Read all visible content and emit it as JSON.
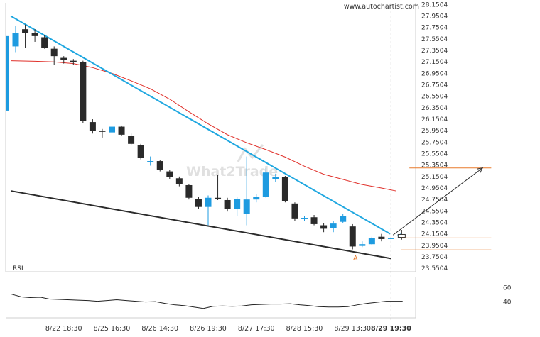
{
  "watermark": "www.autochartist.com",
  "logo_text": "What2Trade",
  "pattern_point_label": "A",
  "colors": {
    "bull": "#1e9be0",
    "bear": "#2a2a2a",
    "ma": "#e0302a",
    "trendline_upper": "#1fa7e0",
    "trendline_lower": "#2b2b2b",
    "target_levels": "#e87a2c",
    "forecast_arrow": "#2b2b2b",
    "rsi_line": "#222222"
  },
  "chart_data": [
    {
      "type": "candlestick",
      "title": "",
      "y_axis_position": "right",
      "y_ticks": [
        "28.1504",
        "27.9504",
        "27.7504",
        "27.5504",
        "27.3504",
        "27.1504",
        "26.9504",
        "26.7504",
        "26.5504",
        "26.3504",
        "26.1504",
        "25.9504",
        "25.7504",
        "25.5504",
        "25.3504",
        "25.1504",
        "24.9504",
        "24.7504",
        "24.5504",
        "24.3504",
        "24.1504",
        "23.9504",
        "23.7504",
        "23.5504"
      ],
      "ylim": [
        23.49,
        28.18
      ],
      "x_tick_labels": [
        {
          "label": "8/22 18:30",
          "index": 5.0
        },
        {
          "label": "8/25 16:30",
          "index": 10.0
        },
        {
          "label": "8/26 14:30",
          "index": 15.0
        },
        {
          "label": "8/26 19:30",
          "index": 20.0
        },
        {
          "label": "8/27 17:30",
          "index": 25.0
        },
        {
          "label": "8/28 15:30",
          "index": 30.0
        },
        {
          "label": "8/29 13:30",
          "index": 35.0
        },
        {
          "label": "8/29 19:30",
          "index": 39.0
        }
      ],
      "current_time_index": 39,
      "candles": [
        {
          "o": 27.42,
          "h": 27.78,
          "l": 27.32,
          "c": 27.65
        },
        {
          "o": 27.72,
          "h": 27.8,
          "l": 27.4,
          "c": 27.66
        },
        {
          "o": 27.66,
          "h": 27.72,
          "l": 27.5,
          "c": 27.6
        },
        {
          "o": 27.58,
          "h": 27.62,
          "l": 27.38,
          "c": 27.4
        },
        {
          "o": 27.38,
          "h": 27.42,
          "l": 27.1,
          "c": 27.25
        },
        {
          "o": 27.22,
          "h": 27.25,
          "l": 27.12,
          "c": 27.18
        },
        {
          "o": 27.17,
          "h": 27.2,
          "l": 27.1,
          "c": 27.16
        },
        {
          "o": 27.15,
          "h": 27.17,
          "l": 26.08,
          "c": 26.12
        },
        {
          "o": 26.1,
          "h": 26.15,
          "l": 25.9,
          "c": 25.95
        },
        {
          "o": 25.95,
          "h": 25.98,
          "l": 25.83,
          "c": 25.93
        },
        {
          "o": 25.92,
          "h": 26.08,
          "l": 25.9,
          "c": 26.02
        },
        {
          "o": 26.02,
          "h": 26.04,
          "l": 25.86,
          "c": 25.88
        },
        {
          "o": 25.86,
          "h": 25.9,
          "l": 25.7,
          "c": 25.72
        },
        {
          "o": 25.7,
          "h": 25.72,
          "l": 25.45,
          "c": 25.48
        },
        {
          "o": 25.42,
          "h": 25.5,
          "l": 25.34,
          "c": 25.42
        },
        {
          "o": 25.42,
          "h": 25.44,
          "l": 25.24,
          "c": 25.26
        },
        {
          "o": 25.24,
          "h": 25.26,
          "l": 25.1,
          "c": 25.14
        },
        {
          "o": 25.12,
          "h": 25.15,
          "l": 24.98,
          "c": 25.02
        },
        {
          "o": 25.0,
          "h": 25.02,
          "l": 24.75,
          "c": 24.78
        },
        {
          "o": 24.76,
          "h": 24.8,
          "l": 24.58,
          "c": 24.62
        },
        {
          "o": 24.62,
          "h": 24.82,
          "l": 24.3,
          "c": 24.78
        },
        {
          "o": 24.78,
          "h": 25.18,
          "l": 24.74,
          "c": 24.76
        },
        {
          "o": 24.74,
          "h": 24.78,
          "l": 24.54,
          "c": 24.58
        },
        {
          "o": 24.58,
          "h": 24.8,
          "l": 24.46,
          "c": 24.76
        },
        {
          "o": 24.5,
          "h": 25.5,
          "l": 24.3,
          "c": 24.75
        },
        {
          "o": 24.75,
          "h": 24.85,
          "l": 24.7,
          "c": 24.8
        },
        {
          "o": 24.8,
          "h": 25.3,
          "l": 24.78,
          "c": 25.22
        },
        {
          "o": 25.1,
          "h": 25.2,
          "l": 25.05,
          "c": 25.14
        },
        {
          "o": 25.14,
          "h": 25.16,
          "l": 24.7,
          "c": 24.72
        },
        {
          "o": 24.68,
          "h": 24.7,
          "l": 24.38,
          "c": 24.42
        },
        {
          "o": 24.42,
          "h": 24.46,
          "l": 24.38,
          "c": 24.43
        },
        {
          "o": 24.44,
          "h": 24.48,
          "l": 24.3,
          "c": 24.32
        },
        {
          "o": 24.3,
          "h": 24.34,
          "l": 24.18,
          "c": 24.24
        },
        {
          "o": 24.25,
          "h": 24.38,
          "l": 24.18,
          "c": 24.33
        },
        {
          "o": 24.36,
          "h": 24.5,
          "l": 24.34,
          "c": 24.46
        },
        {
          "o": 24.28,
          "h": 24.32,
          "l": 23.88,
          "c": 23.93
        },
        {
          "o": 23.94,
          "h": 24.02,
          "l": 23.92,
          "c": 23.97
        },
        {
          "o": 23.97,
          "h": 24.1,
          "l": 23.95,
          "c": 24.08
        },
        {
          "o": 24.1,
          "h": 24.15,
          "l": 24.02,
          "c": 24.06
        },
        {
          "o": 24.06,
          "h": 24.1,
          "l": 24.04,
          "c": 24.08
        },
        {
          "o": 24.12,
          "h": 24.16,
          "l": 24.1,
          "c": 24.14
        }
      ],
      "forecast_candle": {
        "index": 40.1,
        "o": 24.09,
        "h": 24.22,
        "l": 24.05,
        "c": 24.14
      },
      "moving_average": [
        {
          "i": -0.5,
          "v": 27.17
        },
        {
          "i": 2,
          "v": 27.16
        },
        {
          "i": 4,
          "v": 27.15
        },
        {
          "i": 6,
          "v": 27.12
        },
        {
          "i": 8,
          "v": 27.05
        },
        {
          "i": 10,
          "v": 26.95
        },
        {
          "i": 12,
          "v": 26.82
        },
        {
          "i": 14,
          "v": 26.68
        },
        {
          "i": 16,
          "v": 26.5
        },
        {
          "i": 18,
          "v": 26.28
        },
        {
          "i": 20,
          "v": 26.07
        },
        {
          "i": 22,
          "v": 25.88
        },
        {
          "i": 24,
          "v": 25.74
        },
        {
          "i": 26,
          "v": 25.62
        },
        {
          "i": 28,
          "v": 25.49
        },
        {
          "i": 30,
          "v": 25.33
        },
        {
          "i": 32,
          "v": 25.19
        },
        {
          "i": 34,
          "v": 25.1
        },
        {
          "i": 36,
          "v": 25.01
        },
        {
          "i": 38,
          "v": 24.95
        },
        {
          "i": 39.5,
          "v": 24.9
        }
      ],
      "trendline_upper": [
        {
          "i": -0.5,
          "v": 27.95
        },
        {
          "i": 38.9,
          "v": 24.15
        }
      ],
      "trendline_lower": [
        {
          "i": -0.5,
          "v": 24.9
        },
        {
          "i": 39.0,
          "v": 23.72
        }
      ],
      "target_level_upper": {
        "v": 25.3,
        "i_start": 40.9,
        "i_end": 49.4
      },
      "target_level_mid": {
        "v": 24.08,
        "i_start": 40.0,
        "i_end": 49.4
      },
      "target_level_lower": {
        "v": 23.87,
        "i_start": 40.0,
        "i_end": 49.4
      },
      "forecast_arrow": {
        "from": {
          "i": 39.2,
          "v": 24.13
        },
        "to": {
          "i": 48.5,
          "v": 25.3
        }
      },
      "pattern_point": {
        "i": 35.3,
        "v": 23.8
      }
    },
    {
      "type": "line",
      "title": "RSI",
      "y_ticks": [
        "60",
        "40"
      ],
      "ylim": [
        18,
        75
      ],
      "series": [
        {
          "values": [
            {
              "i": -0.5,
              "v": 51
            },
            {
              "i": 0.6,
              "v": 47
            },
            {
              "i": 1.5,
              "v": 46
            },
            {
              "i": 2.6,
              "v": 46.5
            },
            {
              "i": 3.5,
              "v": 44
            },
            {
              "i": 5.4,
              "v": 43
            },
            {
              "i": 6.5,
              "v": 42.5
            },
            {
              "i": 7.5,
              "v": 42
            },
            {
              "i": 8.5,
              "v": 41
            },
            {
              "i": 9.5,
              "v": 42
            },
            {
              "i": 10.5,
              "v": 43
            },
            {
              "i": 11.5,
              "v": 42
            },
            {
              "i": 12.5,
              "v": 41
            },
            {
              "i": 13.5,
              "v": 40
            },
            {
              "i": 14.5,
              "v": 40.5
            },
            {
              "i": 15.5,
              "v": 38
            },
            {
              "i": 16.5,
              "v": 36
            },
            {
              "i": 17.5,
              "v": 35
            },
            {
              "i": 18.5,
              "v": 33
            },
            {
              "i": 19.5,
              "v": 31
            },
            {
              "i": 20.5,
              "v": 34
            },
            {
              "i": 21.5,
              "v": 34.5
            },
            {
              "i": 22.5,
              "v": 34
            },
            {
              "i": 23.5,
              "v": 34.5
            },
            {
              "i": 24.5,
              "v": 36
            },
            {
              "i": 25.5,
              "v": 36.5
            },
            {
              "i": 26.5,
              "v": 37
            },
            {
              "i": 27.5,
              "v": 37
            },
            {
              "i": 28.5,
              "v": 37.5
            },
            {
              "i": 29.5,
              "v": 36
            },
            {
              "i": 30.5,
              "v": 35
            },
            {
              "i": 31.5,
              "v": 33.5
            },
            {
              "i": 32.5,
              "v": 33
            },
            {
              "i": 33.5,
              "v": 33
            },
            {
              "i": 34.5,
              "v": 33.5
            },
            {
              "i": 35.5,
              "v": 36
            },
            {
              "i": 36.5,
              "v": 38
            },
            {
              "i": 37.5,
              "v": 39.5
            },
            {
              "i": 38.5,
              "v": 41
            },
            {
              "i": 39.5,
              "v": 41
            },
            {
              "i": 40.2,
              "v": 41
            }
          ]
        }
      ]
    }
  ]
}
